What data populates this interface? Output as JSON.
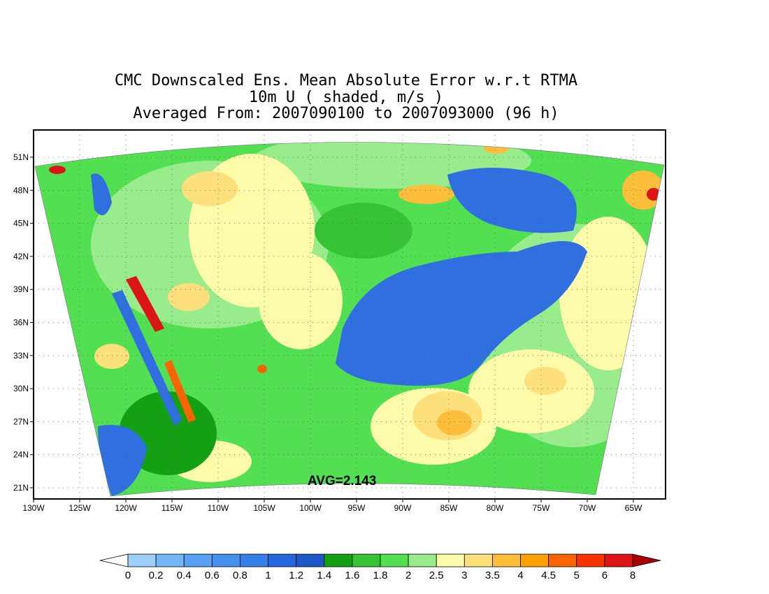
{
  "title_lines": [
    "CMC Downscaled Ens. Mean Absolute Error w.r.t RTMA",
    "10m U ( shaded, m/s )",
    "Averaged From: 2007090100 to 2007093000 (96 h)"
  ],
  "average_label": "AVG=2.143",
  "lat_ticks": [
    "51N",
    "48N",
    "45N",
    "42N",
    "39N",
    "36N",
    "33N",
    "30N",
    "27N",
    "24N",
    "21N"
  ],
  "lon_ticks": [
    "130W",
    "125W",
    "120W",
    "115W",
    "110W",
    "105W",
    "100W",
    "95W",
    "90W",
    "85W",
    "80W",
    "75W",
    "70W",
    "65W"
  ],
  "colorbar": {
    "labels": [
      "0",
      "0.2",
      "0.4",
      "0.6",
      "0.8",
      "1",
      "1.2",
      "1.4",
      "1.6",
      "1.8",
      "2",
      "2.5",
      "3",
      "3.5",
      "4",
      "4.5",
      "5",
      "6",
      "8"
    ],
    "colors": [
      "#ffffff",
      "#9ecefa",
      "#74b6f5",
      "#58a1f2",
      "#4690ef",
      "#3480ea",
      "#2468e0",
      "#1c58c8",
      "#13a013",
      "#36c436",
      "#52e052",
      "#98ec8c",
      "#fdfaaa",
      "#fde07c",
      "#fdbe3c",
      "#fda000",
      "#fb6400",
      "#f83200",
      "#dc1414",
      "#aa0000"
    ]
  },
  "field_colors": {
    "blue": "#2f6fe0",
    "dark_green": "#13a013",
    "green": "#36c436",
    "light_green": "#98ec8c",
    "yellow": "#fdfaaa",
    "light_orange": "#fde07c",
    "orange": "#fdbe3c",
    "dark_orange": "#fb6400",
    "red": "#dc1414"
  }
}
